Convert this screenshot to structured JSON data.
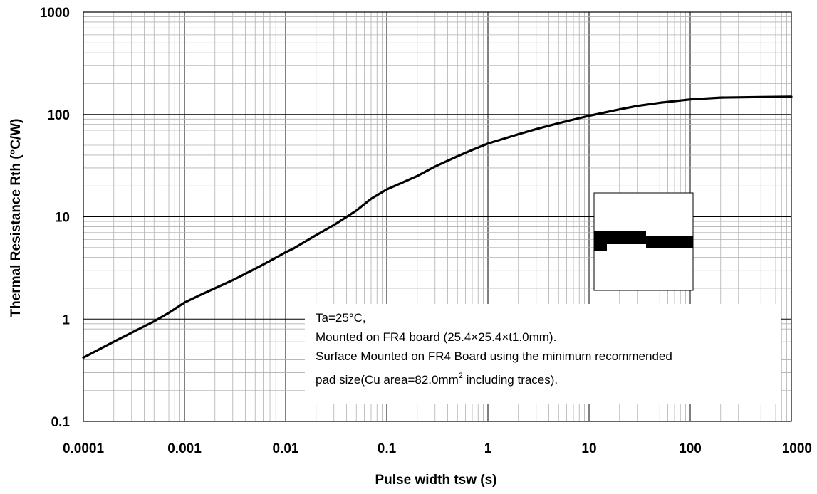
{
  "chart_data": {
    "type": "line",
    "title": "",
    "xlabel": "Pulse width tsw (s)",
    "ylabel": "Thermal Resistance Rth (°C/W)",
    "x_scale": "log",
    "y_scale": "log",
    "xlim": [
      0.0001,
      1000
    ],
    "ylim": [
      0.1,
      1000
    ],
    "x_tick_labels": [
      "0.0001",
      "0.001",
      "0.01",
      "0.1",
      "1",
      "10",
      "100",
      "1000"
    ],
    "y_tick_labels": [
      "0.1",
      "1",
      "10",
      "100",
      "1000"
    ],
    "grid": true,
    "series": [
      {
        "x": [
          0.0001,
          0.0002,
          0.0005,
          0.0007,
          0.001,
          0.0014,
          0.002,
          0.003,
          0.005,
          0.007,
          0.01,
          0.012,
          0.02,
          0.03,
          0.05,
          0.07,
          0.1,
          0.2,
          0.3,
          0.5,
          0.7,
          1,
          2,
          3,
          5,
          7,
          10,
          20,
          30,
          50,
          100,
          200,
          500,
          1000
        ],
        "y": [
          0.42,
          0.6,
          0.95,
          1.15,
          1.45,
          1.7,
          2.0,
          2.4,
          3.1,
          3.7,
          4.5,
          4.9,
          6.6,
          8.3,
          11.5,
          15.0,
          18.5,
          25.0,
          31.0,
          39.0,
          45.0,
          52.0,
          64.0,
          72.0,
          82.0,
          89.0,
          97.0,
          112.0,
          121.0,
          130.0,
          140.0,
          146.0,
          148.0,
          149.0
        ],
        "color": "#000000"
      }
    ],
    "annotation": {
      "line1": "Ta=25°C,",
      "line2": "Mounted on FR4 board  (25.4×25.4×t1.0mm).",
      "line3": "Surface Mounted on FR4 Board using the minimum recommended",
      "line4_prefix": "pad size(Cu area=82.0mm",
      "line4_sup": "2",
      "line4_suffix": " including traces)."
    },
    "inset_diagram": "board-cross-section"
  }
}
